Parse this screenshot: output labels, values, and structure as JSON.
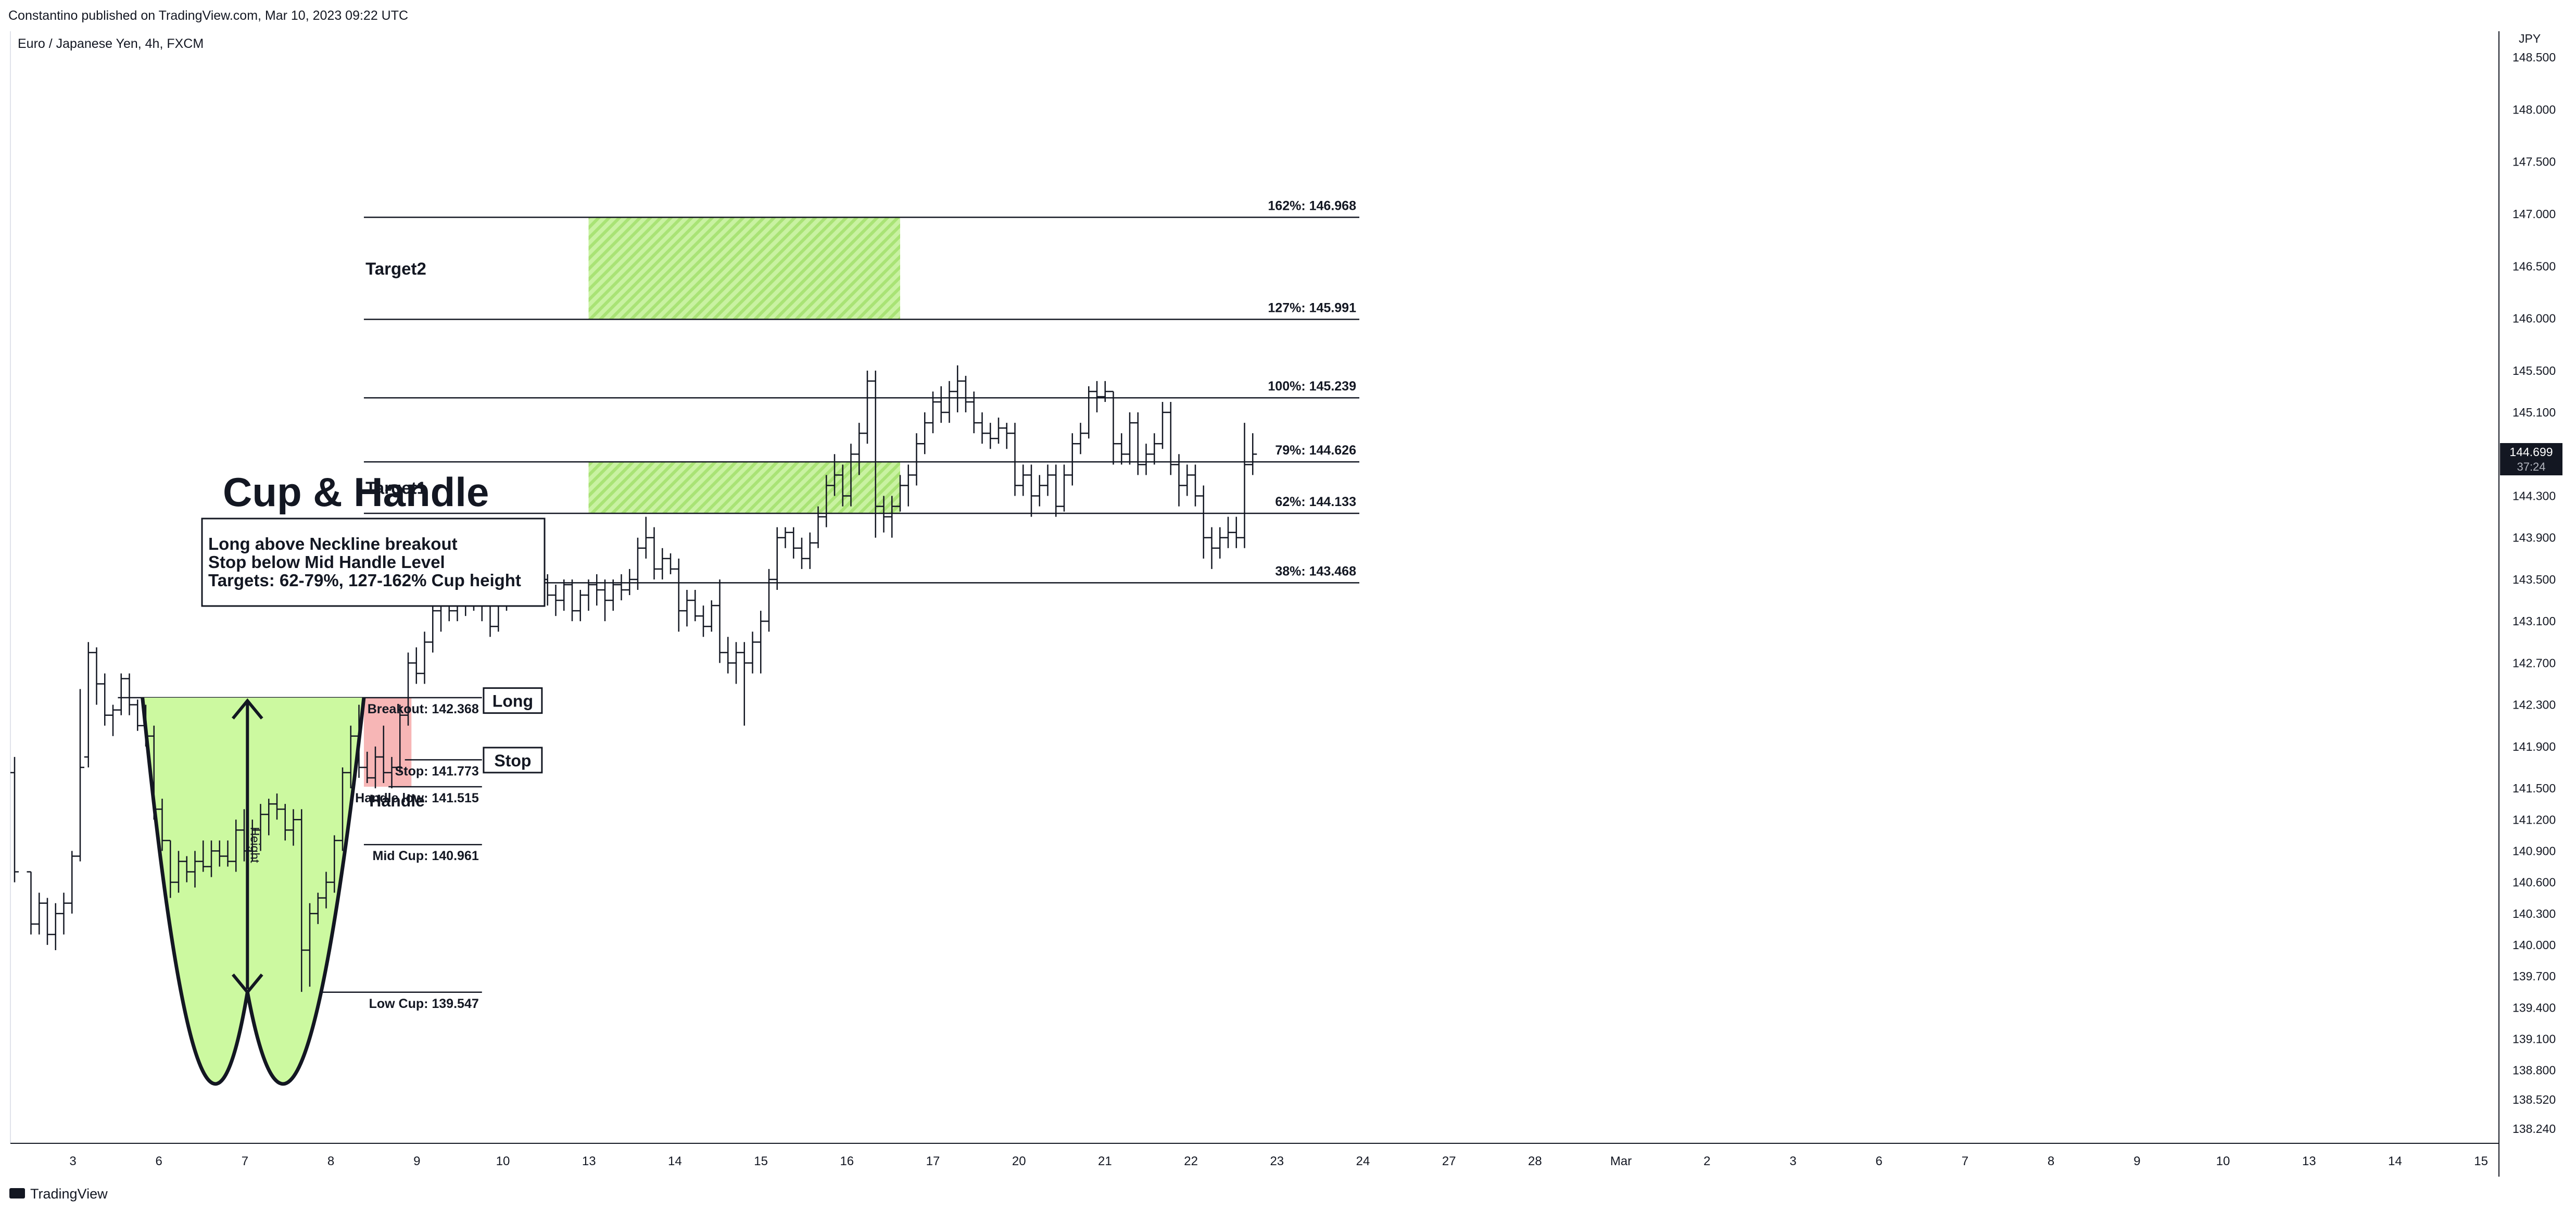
{
  "header": {
    "published": "Constantino published on TradingView.com, Mar 10, 2023 09:22 UTC",
    "symbol": "Euro / Japanese Yen, 4h, FXCM"
  },
  "footer": {
    "brand": "TradingView"
  },
  "colors": {
    "candles": "#131722",
    "levels": "#131722",
    "cup_fill": "#ccf9a0",
    "target_fill": "#b7eb85",
    "handle_fill": "#f7b6b6",
    "price_badge": "#131722"
  },
  "chart_data": {
    "type": "ohlc",
    "title": "Cup & Handle",
    "currency": "JPY",
    "ylim": [
      138.1,
      148.75
    ],
    "y_ticks": [
      148.5,
      148.0,
      147.5,
      147.0,
      146.5,
      146.0,
      145.5,
      145.1,
      144.7,
      144.3,
      143.9,
      143.5,
      143.1,
      142.7,
      142.3,
      141.9,
      141.5,
      141.2,
      140.9,
      140.6,
      140.3,
      140.0,
      139.7,
      139.4,
      139.1,
      138.8,
      138.52,
      138.24
    ],
    "y_tick_labels": [
      "148.500",
      "148.000",
      "147.500",
      "147.000",
      "146.500",
      "146.000",
      "145.500",
      "145.100",
      "144.700",
      "144.300",
      "143.900",
      "143.500",
      "143.100",
      "142.700",
      "142.300",
      "141.900",
      "141.500",
      "141.200",
      "140.900",
      "140.600",
      "140.300",
      "140.000",
      "139.700",
      "139.400",
      "139.100",
      "138.800",
      "138.520",
      "138.240"
    ],
    "x_ticks": [
      "3",
      "6",
      "7",
      "8",
      "9",
      "10",
      "13",
      "14",
      "15",
      "16",
      "17",
      "20",
      "21",
      "22",
      "23",
      "24",
      "27",
      "28",
      "Mar",
      "2",
      "3",
      "6",
      "7",
      "8",
      "9",
      "10",
      "13",
      "14",
      "15"
    ],
    "last_price": "144.699",
    "countdown": "37:24",
    "info_box": [
      "Long above Neckline breakout",
      "Stop below Mid Handle Level",
      "Targets: 62-79%, 127-162% Cup height"
    ],
    "levels": [
      {
        "label": "162%: 146.968",
        "price": 146.968,
        "x_start": 21.3,
        "x_end": 82
      },
      {
        "label": "127%: 145.991",
        "price": 145.991,
        "x_start": 21.3,
        "x_end": 82
      },
      {
        "label": "100%: 145.239",
        "price": 145.239,
        "x_start": 21.3,
        "x_end": 82
      },
      {
        "label": "79%: 144.626",
        "price": 144.626,
        "x_start": 21.3,
        "x_end": 82
      },
      {
        "label": "62%: 144.133",
        "price": 144.133,
        "x_start": 21.3,
        "x_end": 82
      },
      {
        "label": "38%: 143.468",
        "price": 143.468,
        "x_start": 21.3,
        "x_end": 82
      },
      {
        "label": "Breakout: 142.368",
        "price": 142.368,
        "x_start": 6.3,
        "x_end": 28.5
      },
      {
        "label": "Stop: 141.773",
        "price": 141.773,
        "x_start": 23.8,
        "x_end": 28.5
      },
      {
        "label": "Handle low: 141.515",
        "price": 141.515,
        "x_start": 22.8,
        "x_end": 28.5
      },
      {
        "label": "Mid Cup: 140.961",
        "price": 140.961,
        "x_start": 21.3,
        "x_end": 28.5
      },
      {
        "label": "Low Cup: 139.547",
        "price": 139.547,
        "x_start": 17.6,
        "x_end": 28.5
      }
    ],
    "zones": [
      {
        "label": "Target2",
        "x_start": 35,
        "x_end": 54,
        "y_low": 145.991,
        "y_high": 146.968
      },
      {
        "label": "Target1",
        "x_start": 35,
        "x_end": 54,
        "y_low": 144.133,
        "y_high": 144.626
      }
    ],
    "handle_zone": {
      "label": "Handle",
      "x_start": 21.3,
      "x_end": 24.2,
      "y_low": 141.515,
      "y_high": 142.368
    },
    "cup": {
      "x_start": 7.8,
      "x_mid": 14.2,
      "x_end": 21.3,
      "rim": 142.368,
      "bottom": 139.547,
      "height_label": "Height"
    },
    "tags": [
      {
        "label": "Long",
        "x": 28.6,
        "price": 142.34
      },
      {
        "label": "Stop",
        "x": 28.6,
        "price": 141.77
      }
    ],
    "ohlc": [
      [
        0,
        141.65,
        141.8,
        140.6,
        140.7
      ],
      [
        1,
        140.7,
        140.7,
        140.1,
        140.2
      ],
      [
        1.5,
        140.2,
        140.5,
        140.1,
        140.4
      ],
      [
        2,
        140.4,
        140.45,
        140.0,
        140.1
      ],
      [
        2.5,
        140.1,
        140.4,
        139.95,
        140.3
      ],
      [
        3.0,
        140.3,
        140.5,
        140.1,
        140.4
      ],
      [
        3.5,
        140.4,
        140.9,
        140.3,
        140.85
      ],
      [
        4.0,
        140.85,
        142.45,
        140.8,
        141.7
      ],
      [
        4.5,
        141.8,
        142.9,
        141.7,
        142.8
      ],
      [
        5.0,
        142.8,
        142.85,
        142.3,
        142.5
      ],
      [
        5.5,
        142.5,
        142.6,
        142.1,
        142.2
      ],
      [
        6.0,
        142.2,
        142.3,
        142.0,
        142.25
      ],
      [
        6.5,
        142.25,
        142.6,
        142.2,
        142.55
      ],
      [
        7.0,
        142.55,
        142.6,
        142.2,
        142.3
      ],
      [
        7.5,
        142.3,
        142.35,
        142.05,
        142.1
      ],
      [
        8.0,
        142.1,
        142.3,
        141.9,
        142.0
      ],
      [
        8.5,
        142.0,
        142.1,
        141.2,
        141.3
      ],
      [
        9.0,
        141.3,
        141.4,
        140.9,
        141.0
      ],
      [
        9.5,
        141.0,
        141.0,
        140.45,
        140.6
      ],
      [
        10.0,
        140.6,
        140.9,
        140.5,
        140.8
      ],
      [
        10.5,
        140.8,
        140.85,
        140.6,
        140.7
      ],
      [
        11.0,
        140.7,
        140.9,
        140.55,
        140.8
      ],
      [
        11.5,
        140.8,
        141.0,
        140.7,
        140.75
      ],
      [
        12.0,
        140.75,
        141.0,
        140.65,
        140.9
      ],
      [
        12.5,
        140.9,
        141.0,
        140.75,
        140.85
      ],
      [
        13.0,
        140.85,
        141.0,
        140.75,
        140.8
      ],
      [
        13.5,
        140.8,
        141.2,
        140.7,
        141.1
      ],
      [
        14.0,
        141.1,
        141.3,
        140.8,
        140.9
      ],
      [
        14.5,
        140.9,
        141.2,
        140.8,
        141.1
      ],
      [
        15.0,
        141.1,
        141.35,
        140.9,
        141.25
      ],
      [
        15.5,
        141.25,
        141.4,
        141.05,
        141.35
      ],
      [
        16.0,
        141.35,
        141.45,
        141.2,
        141.3
      ],
      [
        16.5,
        141.3,
        141.35,
        141.0,
        141.1
      ],
      [
        17.0,
        141.1,
        141.3,
        140.95,
        141.2
      ],
      [
        17.5,
        141.2,
        141.3,
        139.55,
        139.95
      ],
      [
        18.0,
        139.95,
        140.4,
        139.6,
        140.3
      ],
      [
        18.5,
        140.3,
        140.5,
        140.2,
        140.45
      ],
      [
        19.0,
        140.45,
        140.7,
        140.35,
        140.6
      ],
      [
        19.5,
        140.6,
        141.05,
        140.5,
        141.0
      ],
      [
        20.0,
        141.0,
        141.7,
        140.9,
        141.65
      ],
      [
        20.5,
        141.65,
        142.1,
        141.5,
        142.0
      ],
      [
        21.0,
        142.0,
        142.3,
        141.6,
        141.7
      ],
      [
        21.5,
        141.7,
        141.85,
        141.55,
        141.6
      ],
      [
        22.0,
        141.6,
        141.9,
        141.5,
        141.8
      ],
      [
        22.5,
        141.8,
        142.1,
        141.55,
        141.65
      ],
      [
        23.0,
        141.65,
        141.8,
        141.5,
        141.7
      ],
      [
        23.5,
        141.7,
        142.3,
        141.65,
        142.2
      ],
      [
        24.0,
        142.2,
        142.8,
        142.1,
        142.7
      ],
      [
        24.5,
        142.7,
        142.85,
        142.5,
        142.6
      ],
      [
        25.0,
        142.6,
        143.0,
        142.5,
        142.9
      ],
      [
        25.5,
        142.9,
        143.3,
        142.8,
        143.2
      ],
      [
        26.0,
        143.2,
        143.4,
        143.0,
        143.3
      ],
      [
        26.5,
        143.3,
        143.4,
        143.1,
        143.2
      ],
      [
        27.0,
        143.2,
        143.45,
        143.1,
        143.35
      ],
      [
        27.5,
        143.35,
        143.45,
        143.15,
        143.3
      ],
      [
        28.0,
        143.3,
        143.45,
        143.2,
        143.25
      ],
      [
        28.5,
        143.25,
        143.4,
        143.1,
        143.3
      ],
      [
        29.0,
        143.3,
        143.4,
        142.95,
        143.05
      ],
      [
        29.5,
        143.05,
        143.35,
        143.0,
        143.3
      ],
      [
        30.0,
        143.3,
        143.6,
        143.2,
        143.5
      ],
      [
        30.5,
        143.5,
        143.7,
        143.3,
        143.4
      ],
      [
        31.0,
        143.4,
        143.6,
        143.3,
        143.55
      ],
      [
        31.5,
        143.55,
        143.65,
        143.3,
        143.4
      ],
      [
        32.0,
        143.4,
        143.6,
        143.3,
        143.5
      ],
      [
        32.5,
        143.5,
        143.55,
        143.25,
        143.35
      ],
      [
        33.0,
        143.35,
        143.45,
        143.15,
        143.3
      ],
      [
        33.5,
        143.3,
        143.5,
        143.2,
        143.45
      ],
      [
        34.0,
        143.45,
        143.5,
        143.1,
        143.2
      ],
      [
        34.5,
        143.2,
        143.4,
        143.1,
        143.35
      ],
      [
        35.0,
        143.35,
        143.5,
        143.2,
        143.45
      ],
      [
        35.5,
        143.45,
        143.55,
        143.25,
        143.4
      ],
      [
        36.0,
        143.4,
        143.5,
        143.1,
        143.3
      ],
      [
        36.5,
        143.3,
        143.5,
        143.2,
        143.45
      ],
      [
        37.0,
        143.45,
        143.55,
        143.3,
        143.4
      ],
      [
        37.5,
        143.4,
        143.6,
        143.35,
        143.5
      ],
      [
        38.0,
        143.5,
        143.9,
        143.4,
        143.8
      ],
      [
        38.5,
        143.8,
        144.1,
        143.7,
        143.9
      ],
      [
        39.0,
        143.9,
        144.0,
        143.5,
        143.6
      ],
      [
        39.5,
        143.6,
        143.8,
        143.5,
        143.7
      ],
      [
        40.0,
        143.7,
        143.75,
        143.55,
        143.6
      ],
      [
        40.5,
        143.6,
        143.7,
        143.0,
        143.2
      ],
      [
        41.0,
        143.2,
        143.4,
        143.05,
        143.3
      ],
      [
        41.5,
        143.3,
        143.4,
        143.1,
        143.15
      ],
      [
        42.0,
        143.15,
        143.25,
        142.95,
        143.05
      ],
      [
        42.5,
        143.05,
        143.3,
        143.0,
        143.25
      ],
      [
        43.0,
        143.25,
        143.5,
        142.7,
        142.8
      ],
      [
        43.5,
        142.8,
        142.95,
        142.6,
        142.7
      ],
      [
        44.0,
        142.7,
        142.9,
        142.5,
        142.8
      ],
      [
        44.5,
        142.8,
        142.9,
        142.1,
        142.7
      ],
      [
        45.0,
        142.7,
        143.0,
        142.6,
        142.9
      ],
      [
        45.5,
        142.9,
        143.2,
        142.6,
        143.1
      ],
      [
        46.0,
        143.1,
        143.6,
        143.0,
        143.5
      ],
      [
        46.5,
        143.5,
        144.0,
        143.4,
        143.9
      ],
      [
        47.0,
        143.9,
        144.0,
        143.8,
        143.95
      ],
      [
        47.5,
        143.95,
        144.0,
        143.7,
        143.8
      ],
      [
        48.0,
        143.8,
        143.9,
        143.6,
        143.7
      ],
      [
        48.5,
        143.7,
        143.95,
        143.6,
        143.85
      ],
      [
        49.0,
        143.85,
        144.2,
        143.8,
        144.1
      ],
      [
        49.5,
        144.1,
        144.5,
        144.0,
        144.4
      ],
      [
        50.0,
        144.4,
        144.7,
        144.3,
        144.5
      ],
      [
        50.5,
        144.5,
        144.6,
        144.2,
        144.3
      ],
      [
        51.0,
        144.3,
        144.8,
        144.2,
        144.7
      ],
      [
        51.5,
        144.7,
        145.0,
        144.5,
        144.9
      ],
      [
        52.0,
        144.9,
        145.5,
        144.8,
        145.4
      ],
      [
        52.5,
        145.4,
        145.5,
        143.9,
        144.2
      ],
      [
        53.0,
        144.2,
        144.3,
        143.95,
        144.1
      ],
      [
        53.5,
        144.1,
        144.3,
        143.9,
        144.2
      ],
      [
        54.0,
        144.2,
        144.5,
        144.15,
        144.4
      ],
      [
        54.5,
        144.4,
        144.6,
        144.2,
        144.5
      ],
      [
        55.0,
        144.5,
        144.9,
        144.4,
        144.8
      ],
      [
        55.5,
        144.8,
        145.1,
        144.7,
        145.0
      ],
      [
        56.0,
        145.0,
        145.3,
        144.9,
        145.2
      ],
      [
        56.5,
        145.2,
        145.35,
        145.0,
        145.1
      ],
      [
        57.0,
        145.1,
        145.4,
        145.0,
        145.3
      ],
      [
        57.5,
        145.3,
        145.55,
        145.1,
        145.4
      ],
      [
        58.0,
        145.4,
        145.45,
        145.1,
        145.2
      ],
      [
        58.5,
        145.2,
        145.3,
        144.9,
        145.0
      ],
      [
        59.0,
        145.0,
        145.1,
        144.8,
        144.9
      ],
      [
        59.5,
        144.9,
        145.0,
        144.75,
        144.85
      ],
      [
        60.0,
        144.85,
        145.05,
        144.8,
        144.95
      ],
      [
        60.5,
        144.95,
        145.0,
        144.75,
        144.9
      ],
      [
        61.0,
        144.9,
        145.0,
        144.3,
        144.4
      ],
      [
        61.5,
        144.4,
        144.6,
        144.3,
        144.5
      ],
      [
        62.0,
        144.5,
        144.6,
        144.1,
        144.3
      ],
      [
        62.5,
        144.3,
        144.5,
        144.2,
        144.4
      ],
      [
        63.0,
        144.4,
        144.6,
        144.3,
        144.5
      ],
      [
        63.5,
        144.5,
        144.6,
        144.1,
        144.2
      ],
      [
        64.0,
        144.2,
        144.6,
        144.15,
        144.5
      ],
      [
        64.5,
        144.5,
        144.9,
        144.4,
        144.8
      ],
      [
        65.0,
        144.8,
        145.0,
        144.7,
        144.9
      ],
      [
        65.5,
        144.9,
        145.35,
        144.85,
        145.3
      ],
      [
        66.0,
        145.3,
        145.4,
        145.1,
        145.25
      ],
      [
        66.5,
        145.25,
        145.4,
        145.2,
        145.3
      ],
      [
        67.0,
        145.3,
        145.3,
        144.6,
        144.8
      ],
      [
        67.5,
        144.8,
        144.9,
        144.6,
        144.7
      ],
      [
        68.0,
        144.7,
        145.1,
        144.6,
        145.0
      ],
      [
        68.5,
        145.0,
        145.1,
        144.5,
        144.6
      ],
      [
        69.0,
        144.6,
        144.8,
        144.5,
        144.7
      ],
      [
        69.5,
        144.7,
        144.9,
        144.6,
        144.8
      ],
      [
        70.0,
        144.8,
        145.2,
        144.75,
        145.1
      ],
      [
        70.5,
        145.1,
        145.2,
        144.5,
        144.6
      ],
      [
        71.0,
        144.6,
        144.7,
        144.2,
        144.4
      ],
      [
        71.5,
        144.4,
        144.6,
        144.3,
        144.5
      ],
      [
        72.0,
        144.5,
        144.6,
        144.2,
        144.3
      ],
      [
        72.5,
        144.3,
        144.4,
        143.7,
        143.9
      ],
      [
        73.0,
        143.9,
        144.0,
        143.6,
        143.8
      ],
      [
        73.5,
        143.8,
        144.0,
        143.7,
        143.9
      ],
      [
        74.0,
        143.9,
        144.1,
        143.8,
        143.95
      ],
      [
        74.5,
        143.95,
        144.1,
        143.8,
        143.9
      ],
      [
        75.0,
        143.9,
        145.0,
        143.8,
        144.6
      ],
      [
        75.5,
        144.6,
        144.9,
        144.5,
        144.7
      ]
    ]
  }
}
